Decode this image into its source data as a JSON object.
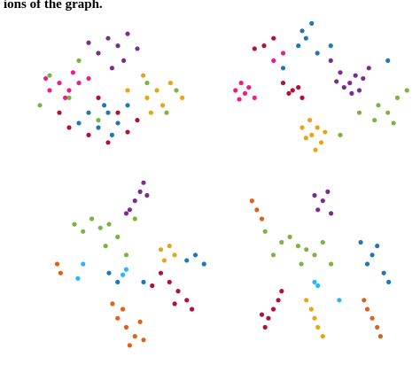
{
  "header_text": "ions of the graph.",
  "chart_data": [
    {
      "type": "scatter",
      "xlim": [
        0,
        100
      ],
      "ylim": [
        0,
        100
      ],
      "series": [
        {
          "color": "#7b2d8e",
          "x": [
            50,
            55,
            60,
            45,
            58,
            65,
            40,
            52
          ],
          "values": [
            85,
            80,
            88,
            75,
            70,
            78,
            82,
            65
          ]
        },
        {
          "color": "#7cb342",
          "x": [
            20,
            30,
            70,
            85,
            15,
            45,
            80,
            35
          ],
          "values": [
            60,
            45,
            55,
            50,
            40,
            30,
            35,
            70
          ]
        },
        {
          "color": "#e8a317",
          "x": [
            70,
            75,
            78,
            68,
            82,
            72,
            60,
            88
          ],
          "values": [
            45,
            50,
            40,
            60,
            55,
            35,
            50,
            45
          ]
        },
        {
          "color": "#b0103a",
          "x": [
            40,
            50,
            30,
            60,
            25,
            55,
            45,
            65
          ],
          "values": [
            20,
            15,
            25,
            22,
            35,
            35,
            45,
            30
          ]
        },
        {
          "color": "#e91e8c",
          "x": [
            25,
            30,
            20,
            35,
            28,
            40,
            18,
            32
          ],
          "values": [
            55,
            50,
            50,
            55,
            45,
            58,
            58,
            62
          ]
        },
        {
          "color": "#1f77b4",
          "x": [
            45,
            50,
            55,
            40,
            60,
            48,
            35,
            52
          ],
          "values": [
            25,
            35,
            28,
            35,
            40,
            40,
            28,
            20
          ]
        }
      ]
    },
    {
      "type": "scatter",
      "xlim": [
        0,
        100
      ],
      "ylim": [
        0,
        100
      ],
      "series": [
        {
          "color": "#7b2d8e",
          "x": [
            65,
            68,
            62,
            70,
            60,
            72,
            66,
            58,
            75,
            55
          ],
          "values": [
            55,
            60,
            52,
            50,
            62,
            58,
            48,
            56,
            65,
            70
          ]
        },
        {
          "color": "#e8a317",
          "x": [
            45,
            48,
            42,
            50,
            40,
            47,
            52,
            44
          ],
          "values": [
            20,
            25,
            18,
            15,
            25,
            10,
            22,
            30
          ]
        },
        {
          "color": "#e91e8c",
          "x": [
            5,
            10,
            8,
            12,
            15,
            7,
            30,
            25
          ],
          "values": [
            50,
            48,
            55,
            52,
            45,
            44,
            75,
            70
          ]
        },
        {
          "color": "#b0103a",
          "x": [
            35,
            38,
            33,
            20,
            25,
            15,
            40,
            30
          ],
          "values": [
            50,
            52,
            48,
            80,
            85,
            78,
            45,
            55
          ]
        },
        {
          "color": "#7cb342",
          "x": [
            80,
            85,
            90,
            78,
            95,
            70,
            88,
            60
          ],
          "values": [
            40,
            35,
            45,
            30,
            50,
            35,
            28,
            20
          ]
        },
        {
          "color": "#1f77b4",
          "x": [
            40,
            42,
            45,
            55,
            38,
            48,
            85,
            30
          ],
          "values": [
            90,
            85,
            95,
            80,
            80,
            75,
            70,
            65
          ]
        }
      ]
    },
    {
      "type": "scatter",
      "xlim": [
        0,
        100
      ],
      "ylim": [
        0,
        100
      ],
      "series": [
        {
          "color": "#7cb342",
          "x": [
            30,
            35,
            40,
            25,
            45,
            38,
            50,
            20,
            55
          ],
          "values": [
            75,
            70,
            72,
            68,
            65,
            60,
            55,
            72,
            75
          ]
        },
        {
          "color": "#7b2d8e",
          "x": [
            55,
            58,
            60,
            52,
            62,
            50
          ],
          "values": [
            85,
            90,
            95,
            80,
            88,
            78
          ]
        },
        {
          "color": "#e0601a",
          "x": [
            45,
            50,
            55,
            48,
            58,
            42,
            60,
            52,
            10,
            12
          ],
          "values": [
            20,
            15,
            10,
            25,
            18,
            28,
            8,
            5,
            50,
            45
          ]
        },
        {
          "color": "#b0103a",
          "x": [
            75,
            80,
            85,
            70,
            78,
            88,
            65
          ],
          "values": [
            40,
            35,
            30,
            45,
            28,
            25,
            38
          ]
        },
        {
          "color": "#1f77b4",
          "x": [
            90,
            85,
            95,
            40,
            45,
            60
          ],
          "values": [
            55,
            52,
            50,
            45,
            40,
            40
          ]
        },
        {
          "color": "#e8a317",
          "x": [
            75,
            78,
            70,
            72
          ],
          "values": [
            60,
            55,
            58,
            52
          ]
        },
        {
          "color": "#29b6f6",
          "x": [
            50,
            48,
            25,
            22
          ],
          "values": [
            47,
            44,
            50,
            42
          ]
        }
      ]
    },
    {
      "type": "scatter",
      "xlim": [
        0,
        100
      ],
      "ylim": [
        0,
        100
      ],
      "series": [
        {
          "color": "#7cb342",
          "x": [
            40,
            35,
            45,
            30,
            50,
            25,
            55,
            42,
            20,
            60
          ],
          "values": [
            60,
            65,
            58,
            62,
            55,
            55,
            62,
            50,
            68,
            50
          ]
        },
        {
          "color": "#7b2d8e",
          "x": [
            55,
            58,
            52,
            60,
            50
          ],
          "values": [
            85,
            90,
            80,
            78,
            88
          ]
        },
        {
          "color": "#1f77b4",
          "x": [
            85,
            88,
            82,
            92,
            78,
            95
          ],
          "values": [
            55,
            60,
            50,
            45,
            62,
            40
          ]
        },
        {
          "color": "#e0601a",
          "x": [
            85,
            88,
            82,
            90,
            80,
            15,
            18,
            12
          ],
          "values": [
            20,
            15,
            25,
            10,
            30,
            80,
            75,
            85
          ]
        },
        {
          "color": "#b0103a",
          "x": [
            25,
            22,
            28,
            20,
            30,
            18
          ],
          "values": [
            25,
            20,
            30,
            15,
            35,
            22
          ]
        },
        {
          "color": "#e8a317",
          "x": [
            50,
            52,
            48,
            55,
            45
          ],
          "values": [
            20,
            15,
            25,
            10,
            30
          ]
        },
        {
          "color": "#29b6f6",
          "x": [
            50,
            52,
            65
          ],
          "values": [
            40,
            38,
            30
          ]
        }
      ]
    }
  ]
}
